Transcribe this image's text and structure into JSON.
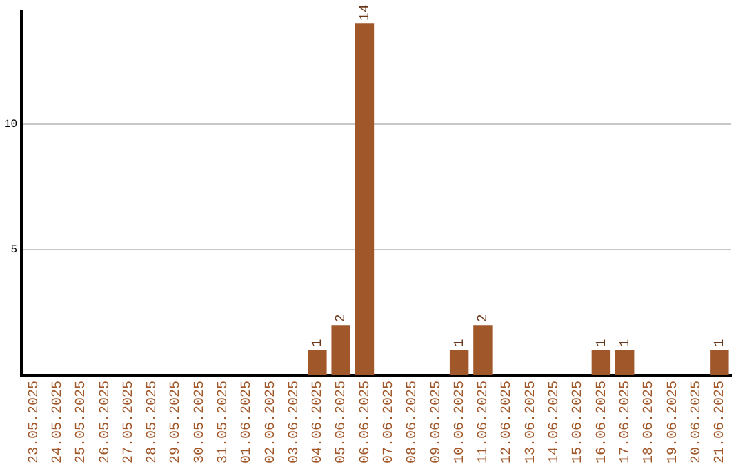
{
  "chart_data": {
    "type": "bar",
    "categories": [
      "23.05.2025",
      "24.05.2025",
      "25.05.2025",
      "26.05.2025",
      "27.05.2025",
      "28.05.2025",
      "29.05.2025",
      "30.05.2025",
      "31.05.2025",
      "01.06.2025",
      "02.06.2025",
      "03.06.2025",
      "04.06.2025",
      "05.06.2025",
      "06.06.2025",
      "07.06.2025",
      "08.06.2025",
      "09.06.2025",
      "10.06.2025",
      "11.06.2025",
      "12.06.2025",
      "13.06.2025",
      "14.06.2025",
      "15.06.2025",
      "16.06.2025",
      "17.06.2025",
      "18.06.2025",
      "19.06.2025",
      "20.06.2025",
      "21.06.2025"
    ],
    "values": [
      0,
      0,
      0,
      0,
      0,
      0,
      0,
      0,
      0,
      0,
      0,
      0,
      1,
      2,
      14,
      0,
      0,
      0,
      1,
      2,
      0,
      0,
      0,
      0,
      1,
      1,
      0,
      0,
      0,
      1
    ],
    "value_labels": [
      null,
      null,
      null,
      null,
      null,
      null,
      null,
      null,
      null,
      null,
      null,
      null,
      "1",
      "2",
      "14",
      null,
      null,
      null,
      "1",
      "2",
      null,
      null,
      null,
      null,
      "1",
      "1",
      null,
      null,
      null,
      "1"
    ],
    "color": "#a0572a",
    "ylim": [
      0,
      14.5
    ],
    "yticks": [
      5,
      10
    ],
    "grid": "y",
    "legend": false
  }
}
